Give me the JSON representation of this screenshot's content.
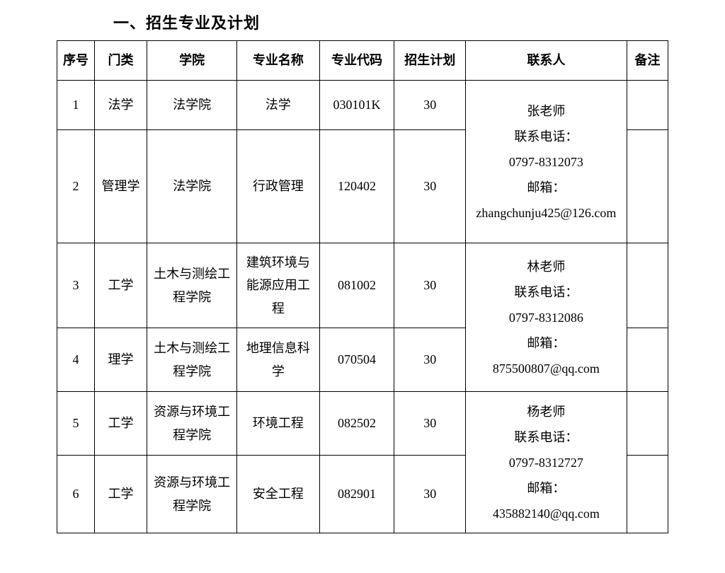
{
  "title": "一、招生专业及计划",
  "headers": {
    "seq": "序号",
    "category": "门类",
    "college": "学院",
    "major_name": "专业名称",
    "major_code": "专业代码",
    "plan": "招生计划",
    "contact": "联系人",
    "note": "备注"
  },
  "rows": [
    {
      "seq": "1",
      "category": "法学",
      "college": "法学院",
      "major_name": "法学",
      "major_code": "030101K",
      "plan": "30"
    },
    {
      "seq": "2",
      "category": "管理学",
      "college": "法学院",
      "major_name": "行政管理",
      "major_code": "120402",
      "plan": "30"
    },
    {
      "seq": "3",
      "category": "工学",
      "college": "土木与测绘工程学院",
      "major_name": "建筑环境与能源应用工程",
      "major_code": "081002",
      "plan": "30"
    },
    {
      "seq": "4",
      "category": "理学",
      "college": "土木与测绘工程学院",
      "major_name": "地理信息科学",
      "major_code": "070504",
      "plan": "30"
    },
    {
      "seq": "5",
      "category": "工学",
      "college": "资源与环境工程学院",
      "major_name": "环境工程",
      "major_code": "082502",
      "plan": "30"
    },
    {
      "seq": "6",
      "category": "工学",
      "college": "资源与环境工程学院",
      "major_name": "安全工程",
      "major_code": "082901",
      "plan": "30"
    }
  ],
  "contacts": [
    {
      "name": "张老师",
      "phone_label": "联系电话：",
      "phone": "0797-8312073",
      "email_label": "邮箱：",
      "email": "zhangchunju425@126.com"
    },
    {
      "name": "林老师",
      "phone_label": "联系电话：",
      "phone": "0797-8312086",
      "email_label": "邮箱：",
      "email": "875500807@qq.com"
    },
    {
      "name": "杨老师",
      "phone_label": "联系电话：",
      "phone": "0797-8312727",
      "email_label": "邮箱：",
      "email": "435882140@qq.com"
    }
  ],
  "row_heights": [
    "70px",
    "160px",
    "120px",
    "90px",
    "90px",
    "110px"
  ]
}
